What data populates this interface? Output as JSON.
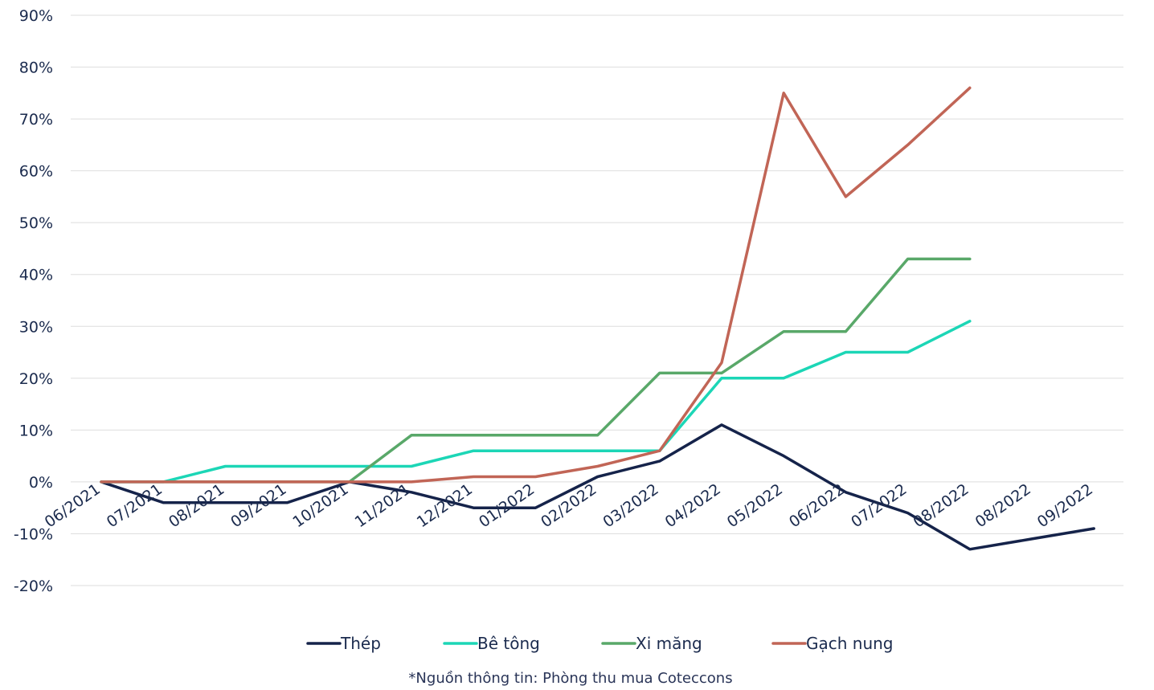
{
  "chart_data": {
    "type": "line",
    "title": "",
    "xlabel": "",
    "ylabel": "",
    "ylim": [
      -20,
      90
    ],
    "y_ticks": [
      "90%",
      "80%",
      "70%",
      "60%",
      "50%",
      "40%",
      "30%",
      "20%",
      "10%",
      "0%",
      "-10%",
      "-20%"
    ],
    "y_tick_values": [
      90,
      80,
      70,
      60,
      50,
      40,
      30,
      20,
      10,
      0,
      -10,
      -20
    ],
    "categories": [
      "06/2021",
      "07/2021",
      "08/2021",
      "09/2021",
      "10/2021",
      "11/2021",
      "12/2021",
      "01/2022",
      "02/2022",
      "03/2022",
      "04/2022",
      "05/2022",
      "06/2022",
      "07/2022",
      "08/2022",
      "08/2022",
      "09/2022"
    ],
    "grid": true,
    "legend_position": "bottom",
    "series": [
      {
        "name": "Thép",
        "color": "#15234a",
        "values": [
          0,
          -4,
          -4,
          -4,
          0,
          -2,
          -5,
          -5,
          1,
          4,
          11,
          5,
          -2,
          -6,
          -13,
          -11,
          -9
        ]
      },
      {
        "name": "Bê tông",
        "color": "#1cd6b6",
        "values": [
          0,
          0,
          3,
          3,
          3,
          3,
          6,
          6,
          6,
          6,
          20,
          20,
          25,
          25,
          31,
          null,
          null
        ]
      },
      {
        "name": "Xi măng",
        "color": "#59a869",
        "values": [
          0,
          0,
          0,
          0,
          0,
          9,
          9,
          9,
          9,
          21,
          21,
          29,
          29,
          43,
          43,
          null,
          null
        ]
      },
      {
        "name": "Gạch nung",
        "color": "#c16556",
        "values": [
          0,
          0,
          0,
          0,
          0,
          0,
          1,
          1,
          3,
          6,
          23,
          75,
          55,
          65,
          76,
          null,
          null
        ]
      }
    ]
  },
  "footnote": "*Nguồn thông tin: Phòng thu mua Coteccons"
}
